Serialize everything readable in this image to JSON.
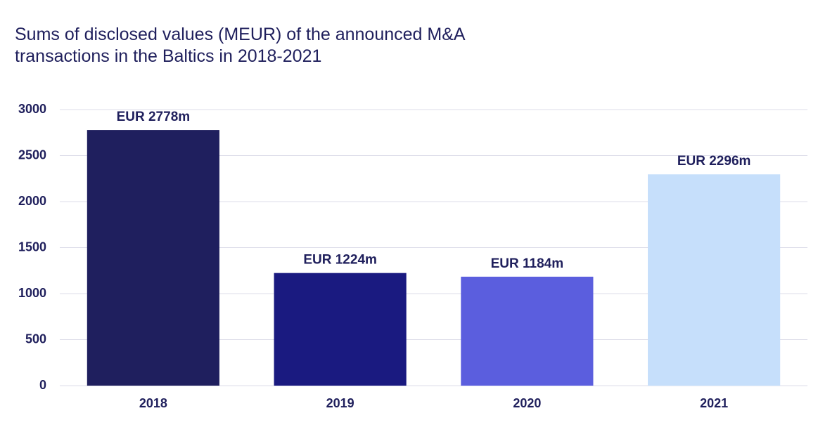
{
  "chart_data": {
    "type": "bar",
    "title": "Sums of disclosed values (MEUR) of the announced M&A transactions in the Baltics in 2018-2021",
    "categories": [
      "2018",
      "2019",
      "2020",
      "2021"
    ],
    "values": [
      2778,
      1224,
      1184,
      2296
    ],
    "value_labels": [
      "EUR 2778m",
      "EUR 1224m",
      "EUR 1184m",
      "EUR 2296m"
    ],
    "colors": [
      "#1f1f5e",
      "#1a1a80",
      "#5b5ede",
      "#c6dffb"
    ],
    "ylim": [
      0,
      3000
    ],
    "yticks": [
      0,
      500,
      1000,
      1500,
      2000,
      2500,
      3000
    ],
    "grid": true
  }
}
